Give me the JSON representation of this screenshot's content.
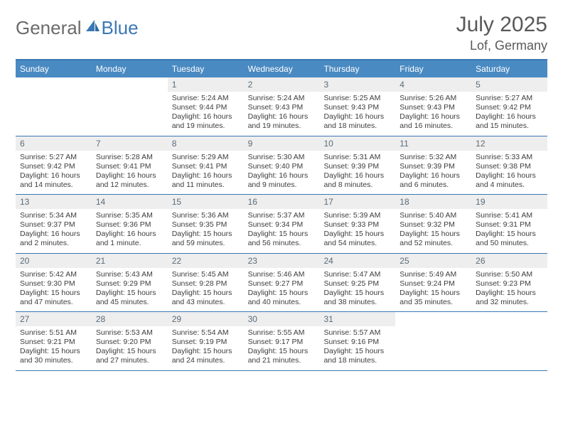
{
  "logo": {
    "general": "General",
    "blue": "Blue"
  },
  "title": "July 2025",
  "location": "Lof, Germany",
  "colors": {
    "header_bg": "#4a8ac2",
    "header_border": "#3a78b5",
    "weekday_text": "#ffffff",
    "daynum_bg": "#eeeeee",
    "daynum_text": "#5a6b7a",
    "body_text": "#3d3d3d",
    "title_text": "#595959",
    "logo_gray": "#6b6b6b",
    "logo_blue": "#3a78b5"
  },
  "weekdays": [
    "Sunday",
    "Monday",
    "Tuesday",
    "Wednesday",
    "Thursday",
    "Friday",
    "Saturday"
  ],
  "weeks": [
    [
      {
        "n": "",
        "sr": "",
        "ss": "",
        "dl": ""
      },
      {
        "n": "",
        "sr": "",
        "ss": "",
        "dl": ""
      },
      {
        "n": "1",
        "sr": "Sunrise: 5:24 AM",
        "ss": "Sunset: 9:44 PM",
        "dl": "Daylight: 16 hours and 19 minutes."
      },
      {
        "n": "2",
        "sr": "Sunrise: 5:24 AM",
        "ss": "Sunset: 9:43 PM",
        "dl": "Daylight: 16 hours and 19 minutes."
      },
      {
        "n": "3",
        "sr": "Sunrise: 5:25 AM",
        "ss": "Sunset: 9:43 PM",
        "dl": "Daylight: 16 hours and 18 minutes."
      },
      {
        "n": "4",
        "sr": "Sunrise: 5:26 AM",
        "ss": "Sunset: 9:43 PM",
        "dl": "Daylight: 16 hours and 16 minutes."
      },
      {
        "n": "5",
        "sr": "Sunrise: 5:27 AM",
        "ss": "Sunset: 9:42 PM",
        "dl": "Daylight: 16 hours and 15 minutes."
      }
    ],
    [
      {
        "n": "6",
        "sr": "Sunrise: 5:27 AM",
        "ss": "Sunset: 9:42 PM",
        "dl": "Daylight: 16 hours and 14 minutes."
      },
      {
        "n": "7",
        "sr": "Sunrise: 5:28 AM",
        "ss": "Sunset: 9:41 PM",
        "dl": "Daylight: 16 hours and 12 minutes."
      },
      {
        "n": "8",
        "sr": "Sunrise: 5:29 AM",
        "ss": "Sunset: 9:41 PM",
        "dl": "Daylight: 16 hours and 11 minutes."
      },
      {
        "n": "9",
        "sr": "Sunrise: 5:30 AM",
        "ss": "Sunset: 9:40 PM",
        "dl": "Daylight: 16 hours and 9 minutes."
      },
      {
        "n": "10",
        "sr": "Sunrise: 5:31 AM",
        "ss": "Sunset: 9:39 PM",
        "dl": "Daylight: 16 hours and 8 minutes."
      },
      {
        "n": "11",
        "sr": "Sunrise: 5:32 AM",
        "ss": "Sunset: 9:39 PM",
        "dl": "Daylight: 16 hours and 6 minutes."
      },
      {
        "n": "12",
        "sr": "Sunrise: 5:33 AM",
        "ss": "Sunset: 9:38 PM",
        "dl": "Daylight: 16 hours and 4 minutes."
      }
    ],
    [
      {
        "n": "13",
        "sr": "Sunrise: 5:34 AM",
        "ss": "Sunset: 9:37 PM",
        "dl": "Daylight: 16 hours and 2 minutes."
      },
      {
        "n": "14",
        "sr": "Sunrise: 5:35 AM",
        "ss": "Sunset: 9:36 PM",
        "dl": "Daylight: 16 hours and 1 minute."
      },
      {
        "n": "15",
        "sr": "Sunrise: 5:36 AM",
        "ss": "Sunset: 9:35 PM",
        "dl": "Daylight: 15 hours and 59 minutes."
      },
      {
        "n": "16",
        "sr": "Sunrise: 5:37 AM",
        "ss": "Sunset: 9:34 PM",
        "dl": "Daylight: 15 hours and 56 minutes."
      },
      {
        "n": "17",
        "sr": "Sunrise: 5:39 AM",
        "ss": "Sunset: 9:33 PM",
        "dl": "Daylight: 15 hours and 54 minutes."
      },
      {
        "n": "18",
        "sr": "Sunrise: 5:40 AM",
        "ss": "Sunset: 9:32 PM",
        "dl": "Daylight: 15 hours and 52 minutes."
      },
      {
        "n": "19",
        "sr": "Sunrise: 5:41 AM",
        "ss": "Sunset: 9:31 PM",
        "dl": "Daylight: 15 hours and 50 minutes."
      }
    ],
    [
      {
        "n": "20",
        "sr": "Sunrise: 5:42 AM",
        "ss": "Sunset: 9:30 PM",
        "dl": "Daylight: 15 hours and 47 minutes."
      },
      {
        "n": "21",
        "sr": "Sunrise: 5:43 AM",
        "ss": "Sunset: 9:29 PM",
        "dl": "Daylight: 15 hours and 45 minutes."
      },
      {
        "n": "22",
        "sr": "Sunrise: 5:45 AM",
        "ss": "Sunset: 9:28 PM",
        "dl": "Daylight: 15 hours and 43 minutes."
      },
      {
        "n": "23",
        "sr": "Sunrise: 5:46 AM",
        "ss": "Sunset: 9:27 PM",
        "dl": "Daylight: 15 hours and 40 minutes."
      },
      {
        "n": "24",
        "sr": "Sunrise: 5:47 AM",
        "ss": "Sunset: 9:25 PM",
        "dl": "Daylight: 15 hours and 38 minutes."
      },
      {
        "n": "25",
        "sr": "Sunrise: 5:49 AM",
        "ss": "Sunset: 9:24 PM",
        "dl": "Daylight: 15 hours and 35 minutes."
      },
      {
        "n": "26",
        "sr": "Sunrise: 5:50 AM",
        "ss": "Sunset: 9:23 PM",
        "dl": "Daylight: 15 hours and 32 minutes."
      }
    ],
    [
      {
        "n": "27",
        "sr": "Sunrise: 5:51 AM",
        "ss": "Sunset: 9:21 PM",
        "dl": "Daylight: 15 hours and 30 minutes."
      },
      {
        "n": "28",
        "sr": "Sunrise: 5:53 AM",
        "ss": "Sunset: 9:20 PM",
        "dl": "Daylight: 15 hours and 27 minutes."
      },
      {
        "n": "29",
        "sr": "Sunrise: 5:54 AM",
        "ss": "Sunset: 9:19 PM",
        "dl": "Daylight: 15 hours and 24 minutes."
      },
      {
        "n": "30",
        "sr": "Sunrise: 5:55 AM",
        "ss": "Sunset: 9:17 PM",
        "dl": "Daylight: 15 hours and 21 minutes."
      },
      {
        "n": "31",
        "sr": "Sunrise: 5:57 AM",
        "ss": "Sunset: 9:16 PM",
        "dl": "Daylight: 15 hours and 18 minutes."
      },
      {
        "n": "",
        "sr": "",
        "ss": "",
        "dl": ""
      },
      {
        "n": "",
        "sr": "",
        "ss": "",
        "dl": ""
      }
    ]
  ]
}
